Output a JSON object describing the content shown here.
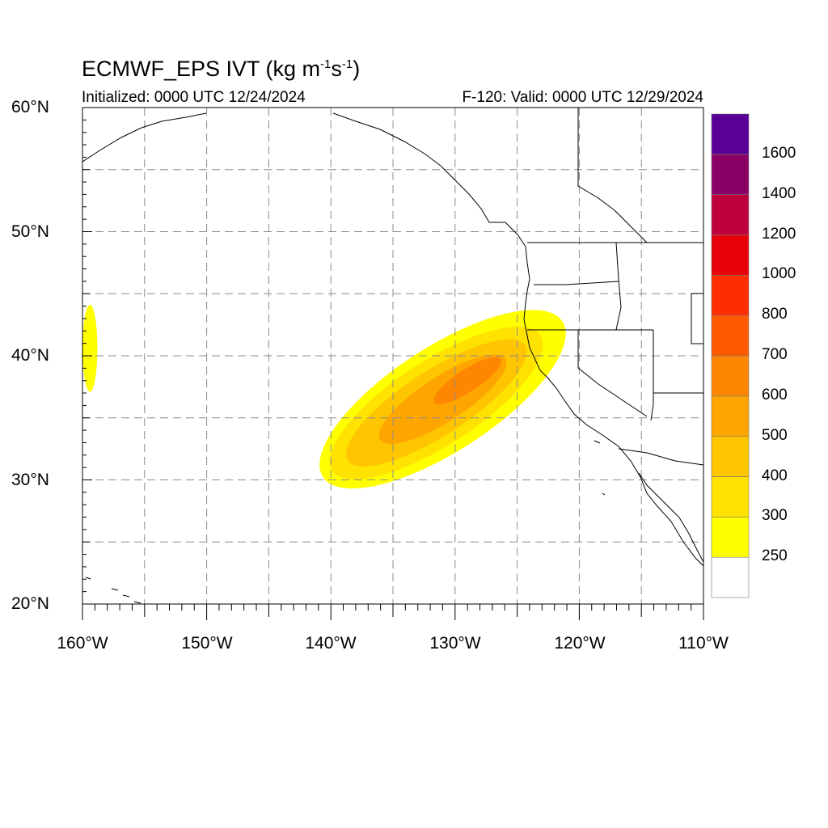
{
  "title": {
    "main": "ECMWF_EPS IVT (kg m",
    "sup1": "-1",
    "mid": "s",
    "sup2": "-1",
    "end": ")"
  },
  "subtitle_left": "Initialized: 0000 UTC 12/24/2024",
  "subtitle_right": "F-120: Valid: 0000 UTC 12/29/2024",
  "lat_labels": [
    "60°N",
    "50°N",
    "40°N",
    "30°N",
    "20°N"
  ],
  "lon_labels": [
    "160°W",
    "150°W",
    "140°W",
    "130°W",
    "120°W",
    "110°W"
  ],
  "colorbar": {
    "colors": [
      "#ffffff",
      "#ffff00",
      "#ffe200",
      "#ffc500",
      "#ffa500",
      "#ff8600",
      "#ff5a00",
      "#ff2e00",
      "#e8000a",
      "#c0003c",
      "#8b0064",
      "#5a0096"
    ],
    "labels": [
      "250",
      "300",
      "400",
      "500",
      "600",
      "700",
      "800",
      "1000",
      "1200",
      "1400",
      "1600"
    ]
  },
  "chart_data": {
    "type": "heatmap",
    "variable": "IVT",
    "units": "kg m-1 s-1",
    "domain": {
      "lon": [
        -160,
        -110
      ],
      "lat": [
        20,
        60
      ]
    },
    "contour_levels": [
      250,
      300,
      400,
      500,
      600,
      700,
      800,
      1000,
      1200,
      1400,
      1600
    ],
    "features": [
      {
        "type": "ellipse",
        "center": [
          -131,
          36.5
        ],
        "semi_major_deg": 11.5,
        "semi_minor_deg": 4.2,
        "angle_deg": 33,
        "value": 250
      },
      {
        "type": "ellipse",
        "center": [
          -131.5,
          36.2
        ],
        "semi_major_deg": 10,
        "semi_minor_deg": 3.4,
        "angle_deg": 33,
        "value": 300
      },
      {
        "type": "ellipse",
        "center": [
          -131.5,
          36.2
        ],
        "semi_major_deg": 8.5,
        "semi_minor_deg": 2.6,
        "angle_deg": 33,
        "value": 400
      },
      {
        "type": "ellipse",
        "center": [
          -131,
          36.5
        ],
        "semi_major_deg": 6,
        "semi_minor_deg": 1.8,
        "angle_deg": 33,
        "value": 500
      },
      {
        "type": "ellipse",
        "center": [
          -129,
          38
        ],
        "semi_major_deg": 3.2,
        "semi_minor_deg": 0.9,
        "angle_deg": 33,
        "value": 600
      },
      {
        "type": "ellipse",
        "center": [
          -159.4,
          40.6
        ],
        "semi_major_deg": 3.5,
        "semi_minor_deg": 0.6,
        "angle_deg": 90,
        "value": 250
      }
    ]
  }
}
